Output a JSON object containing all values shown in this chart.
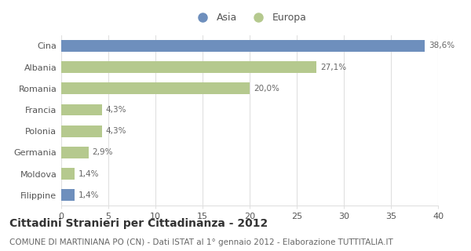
{
  "categories": [
    "Filippine",
    "Moldova",
    "Germania",
    "Polonia",
    "Francia",
    "Romania",
    "Albania",
    "Cina"
  ],
  "values": [
    1.4,
    1.4,
    2.9,
    4.3,
    4.3,
    20.0,
    27.1,
    38.6
  ],
  "colors": [
    "#6e8fbd",
    "#b5c98e",
    "#b5c98e",
    "#b5c98e",
    "#b5c98e",
    "#b5c98e",
    "#b5c98e",
    "#6e8fbd"
  ],
  "continent": [
    "Asia",
    "Europa",
    "Europa",
    "Europa",
    "Europa",
    "Europa",
    "Europa",
    "Asia"
  ],
  "labels": [
    "1,4%",
    "1,4%",
    "2,9%",
    "4,3%",
    "4,3%",
    "20,0%",
    "27,1%",
    "38,6%"
  ],
  "xlim": [
    0,
    40
  ],
  "xticks": [
    0,
    5,
    10,
    15,
    20,
    25,
    30,
    35,
    40
  ],
  "title": "Cittadini Stranieri per Cittadinanza - 2012",
  "subtitle": "COMUNE DI MARTINIANA PO (CN) - Dati ISTAT al 1° gennaio 2012 - Elaborazione TUTTITALIA.IT",
  "legend_asia_color": "#6e8fbd",
  "legend_europa_color": "#b5c98e",
  "background_color": "#ffffff",
  "grid_color": "#e0e0e0",
  "title_fontsize": 10,
  "subtitle_fontsize": 7.5,
  "label_fontsize": 7.5,
  "tick_fontsize": 8,
  "bar_height": 0.55
}
